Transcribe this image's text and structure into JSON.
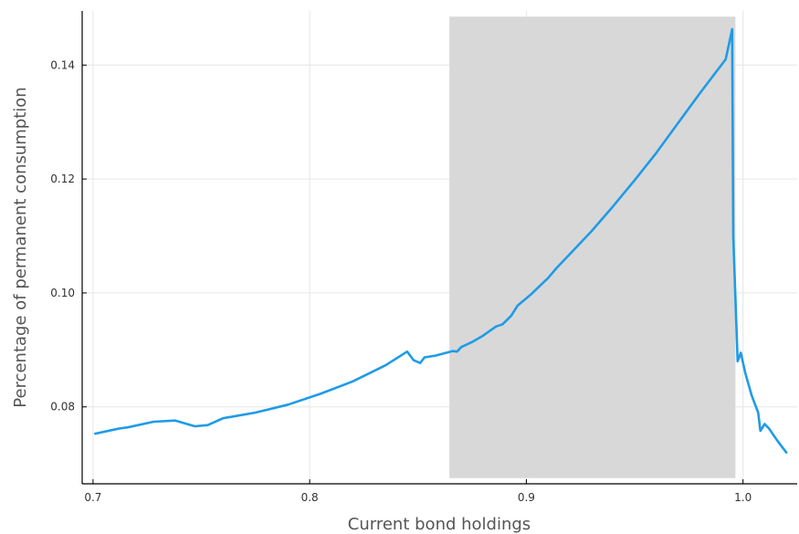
{
  "chart_data": {
    "type": "line",
    "xlabel": "Current bond holdings",
    "ylabel": "Percentage of permanent consumption",
    "xlim": [
      0.695,
      1.025
    ],
    "ylim": [
      0.0665,
      0.1495
    ],
    "xticks": [
      0.7,
      0.8,
      0.9,
      1.0
    ],
    "xtick_labels": [
      "0.7",
      "0.8",
      "0.9",
      "1.0"
    ],
    "yticks": [
      0.08,
      0.1,
      0.12,
      0.14
    ],
    "ytick_labels": [
      "0.08",
      "0.10",
      "0.12",
      "0.14"
    ],
    "grid": true,
    "legend": "none",
    "shaded_region": {
      "x": [
        0.8645,
        0.9965
      ],
      "y": [
        0.0675,
        0.1485
      ],
      "color": "#d8d8d8"
    },
    "series": [
      {
        "color": "#1f9be6",
        "x": [
          0.701,
          0.712,
          0.716,
          0.728,
          0.738,
          0.747,
          0.753,
          0.76,
          0.775,
          0.79,
          0.805,
          0.82,
          0.835,
          0.845,
          0.848,
          0.851,
          0.853,
          0.858,
          0.866,
          0.868,
          0.87,
          0.875,
          0.88,
          0.886,
          0.889,
          0.893,
          0.896,
          0.902,
          0.905,
          0.91,
          0.914,
          0.92,
          0.93,
          0.94,
          0.95,
          0.96,
          0.97,
          0.98,
          0.992,
          0.995,
          0.9955,
          0.9975,
          0.999,
          1.001,
          1.004,
          1.007,
          1.008,
          1.01,
          1.012,
          1.016,
          1.02
        ],
        "y": [
          0.0753,
          0.0762,
          0.0764,
          0.0774,
          0.0776,
          0.0766,
          0.0768,
          0.078,
          0.079,
          0.0804,
          0.0823,
          0.0845,
          0.0873,
          0.0897,
          0.0882,
          0.0877,
          0.0887,
          0.089,
          0.0898,
          0.0897,
          0.0905,
          0.0914,
          0.0925,
          0.0941,
          0.0945,
          0.096,
          0.0978,
          0.0997,
          0.1008,
          0.1026,
          0.1044,
          0.1068,
          0.1108,
          0.1152,
          0.1198,
          0.1246,
          0.1298,
          0.135,
          0.141,
          0.1463,
          0.11,
          0.088,
          0.0895,
          0.086,
          0.082,
          0.079,
          0.0758,
          0.077,
          0.0762,
          0.074,
          0.072
        ]
      }
    ]
  }
}
